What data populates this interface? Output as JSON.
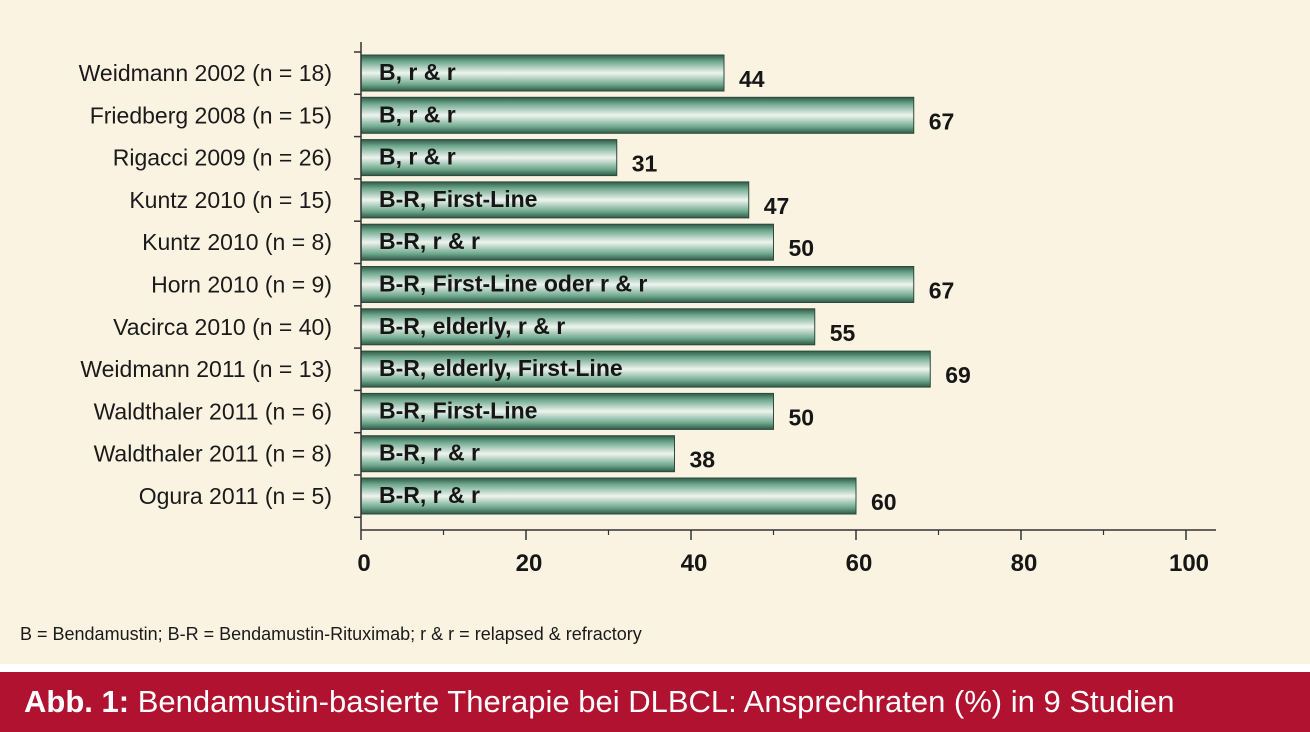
{
  "chart_data": {
    "type": "bar",
    "orientation": "horizontal",
    "categories": [
      "Weidmann 2002 (n = 18)",
      "Friedberg 2008 (n = 15)",
      "Rigacci 2009 (n = 26)",
      "Kuntz 2010 (n = 15)",
      "Kuntz 2010 (n = 8)",
      "Horn 2010 (n = 9)",
      "Vacirca 2010 (n = 40)",
      "Weidmann 2011 (n = 13)",
      "Waldthaler 2011 (n = 6)",
      "Waldthaler 2011 (n = 8)",
      "Ogura 2011 (n = 5)"
    ],
    "bar_labels": [
      "B, r & r",
      "B, r & r",
      "B, r & r",
      "B-R, First-Line",
      "B-R, r & r",
      "B-R, First-Line oder r & r",
      "B-R, elderly, r & r",
      "B-R, elderly, First-Line",
      "B-R, First-Line",
      "B-R, r & r",
      "B-R, r & r"
    ],
    "values": [
      44,
      67,
      31,
      47,
      50,
      67,
      55,
      69,
      50,
      38,
      60
    ],
    "xlim": [
      0,
      100
    ],
    "xticks": [
      0,
      20,
      40,
      60,
      80,
      100
    ],
    "grid": false,
    "colors": {
      "bar": "#5d9a7f",
      "bar_edge": "#2b4a3c",
      "background": "#faf3e2"
    }
  },
  "footnote": "B = Bendamustin; B-R = Bendamustin-Rituximab; r & r = relapsed & refractory",
  "caption": {
    "lead": "Abb. 1:",
    "text": "Bendamustin-basierte Therapie bei DLBCL: Ansprechraten (%) in 9 Studien",
    "color": "#b01230"
  }
}
